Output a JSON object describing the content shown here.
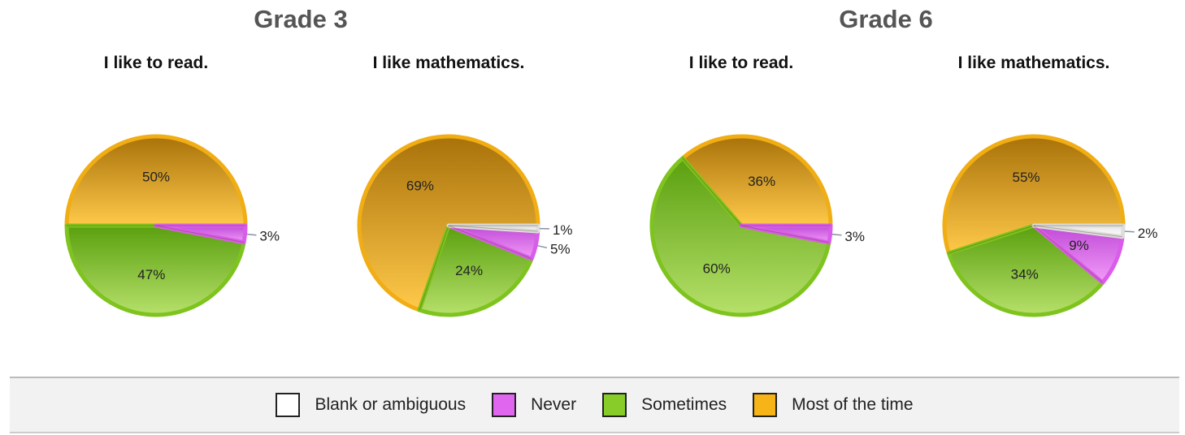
{
  "grades": [
    "Grade 3",
    "Grade 6"
  ],
  "legend": [
    {
      "label": "Blank or ambiguous",
      "color": "#ffffff"
    },
    {
      "label": "Never",
      "color": "#e066f0"
    },
    {
      "label": "Sometimes",
      "color": "#88cc2a"
    },
    {
      "label": "Most of the time",
      "color": "#f6b418"
    }
  ],
  "chart_data": [
    {
      "type": "pie",
      "group": "Grade 3",
      "title": "I like to read.",
      "slices": [
        {
          "category": "Most of the time",
          "value": 50,
          "label": "50%"
        },
        {
          "category": "Never",
          "value": 3,
          "label": "3%"
        },
        {
          "category": "Sometimes",
          "value": 47,
          "label": "47%"
        }
      ]
    },
    {
      "type": "pie",
      "group": "Grade 3",
      "title": "I like mathematics.",
      "slices": [
        {
          "category": "Blank or ambiguous",
          "value": 1,
          "label": "1%"
        },
        {
          "category": "Never",
          "value": 5,
          "label": "5%"
        },
        {
          "category": "Sometimes",
          "value": 24,
          "label": "24%"
        },
        {
          "category": "Most of the time",
          "value": 69,
          "label": "69%"
        }
      ]
    },
    {
      "type": "pie",
      "group": "Grade 6",
      "title": "I like to read.",
      "slices": [
        {
          "category": "Most of the time",
          "value": 36,
          "label": "36%"
        },
        {
          "category": "Never",
          "value": 3,
          "label": "3%"
        },
        {
          "category": "Sometimes",
          "value": 60,
          "label": "60%"
        }
      ]
    },
    {
      "type": "pie",
      "group": "Grade 6",
      "title": "I like mathematics.",
      "slices": [
        {
          "category": "Blank or ambiguous",
          "value": 2,
          "label": "2%"
        },
        {
          "category": "Never",
          "value": 9,
          "label": "9%"
        },
        {
          "category": "Sometimes",
          "value": 34,
          "label": "34%"
        },
        {
          "category": "Most of the time",
          "value": 55,
          "label": "55%"
        }
      ]
    }
  ]
}
